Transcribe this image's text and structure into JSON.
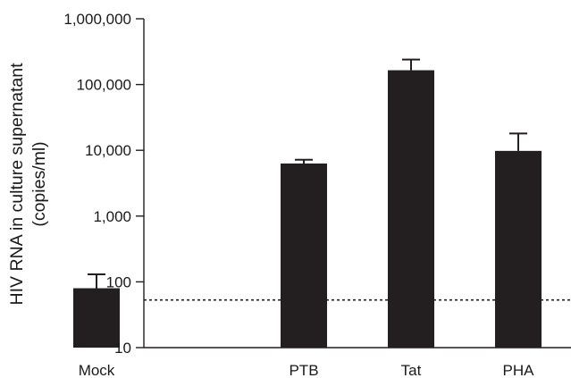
{
  "chart_data": {
    "type": "bar",
    "title": "",
    "xlabel": "",
    "ylabel_lines": [
      "HIV RNA in culture supernatant",
      "(copies/ml)"
    ],
    "y_scale": "log",
    "ylim": [
      10,
      1000000
    ],
    "y_ticks": [
      10,
      100,
      1000,
      10000,
      100000,
      1000000
    ],
    "y_tick_labels": [
      "10",
      "100",
      "1,000",
      "10,000",
      "100,000",
      "1,000,000"
    ],
    "categories": [
      "Mock",
      "PTB",
      "Tat",
      "PHA"
    ],
    "values": [
      80,
      6300,
      165000,
      9800
    ],
    "error_upper": [
      130,
      7200,
      240000,
      18000
    ],
    "detection_limit": 53,
    "bar_color": "#231f20",
    "grid": false,
    "legend": "none"
  }
}
